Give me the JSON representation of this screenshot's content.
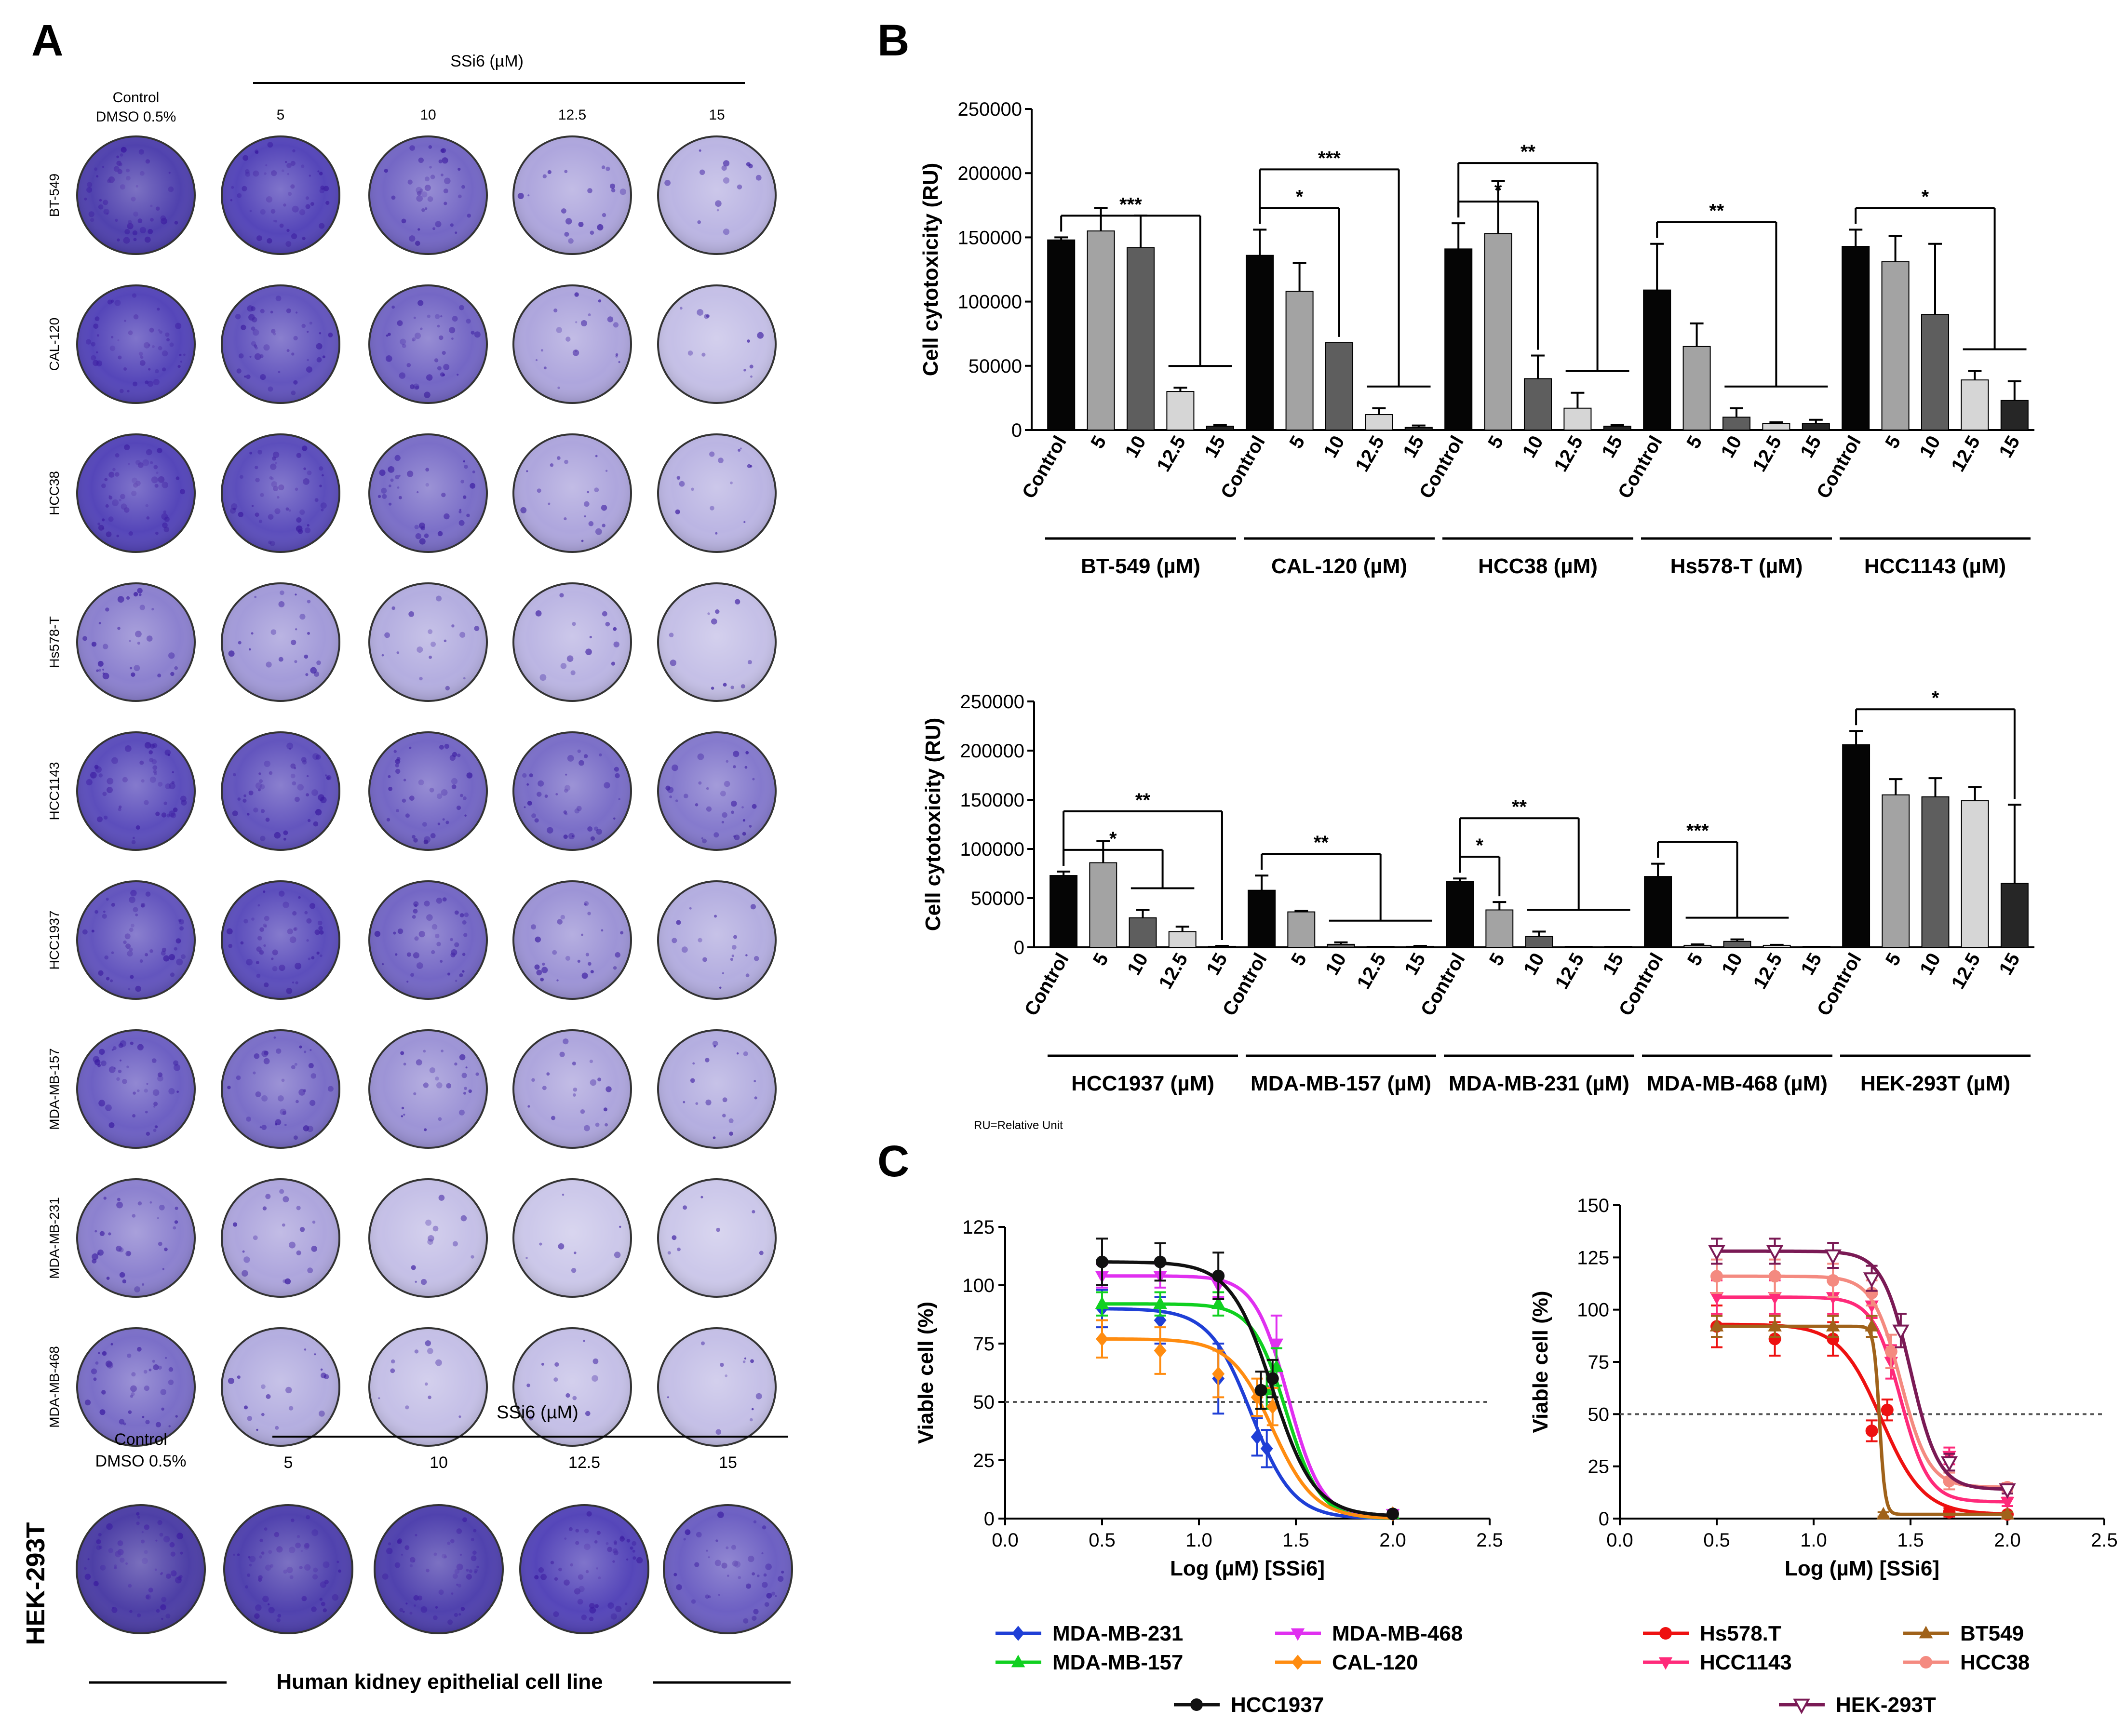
{
  "panel_labels": {
    "A": "A",
    "B": "B",
    "C": "C"
  },
  "colony_assay": {
    "control_label_line1": "Control",
    "control_label_line2": "DMSO 0.5%",
    "treatment_label": "SSi6 (µM)",
    "concentrations": [
      "5",
      "10",
      "12.5",
      "15"
    ],
    "cell_lines": [
      "BT-549",
      "CAL-120",
      "HCC38",
      "Hs578-T",
      "HCC1143",
      "HCC1937",
      "MDA-MB-157",
      "MDA-MB-231",
      "MDA-MB-468"
    ],
    "stain_intensity": [
      [
        0.95,
        0.9,
        0.7,
        0.35,
        0.25
      ],
      [
        0.9,
        0.8,
        0.7,
        0.35,
        0.2
      ],
      [
        0.9,
        0.85,
        0.65,
        0.35,
        0.25
      ],
      [
        0.55,
        0.4,
        0.3,
        0.25,
        0.2
      ],
      [
        0.85,
        0.8,
        0.7,
        0.65,
        0.6
      ],
      [
        0.8,
        0.85,
        0.7,
        0.45,
        0.3
      ],
      [
        0.75,
        0.65,
        0.45,
        0.35,
        0.3
      ],
      [
        0.55,
        0.35,
        0.2,
        0.15,
        0.15
      ],
      [
        0.65,
        0.3,
        0.2,
        0.2,
        0.2
      ]
    ],
    "hek": {
      "control_label_line1": "Control",
      "control_label_line2": "DMSO 0.5%",
      "treatment_label": "SSi6 (µM)",
      "concentrations": [
        "5",
        "10",
        "12.5",
        "15"
      ],
      "cell_line": "HEK-293T",
      "stain_intensity": [
        1.0,
        0.95,
        0.95,
        0.9,
        0.75
      ],
      "caption": "Human kidney epithelial cell line"
    }
  },
  "chart_data": [
    {
      "id": "B-top",
      "type": "bar",
      "ylabel": "Cell cytotoxicity (RU)",
      "ylim": [
        0,
        250000
      ],
      "yticks": [
        "0",
        "50000",
        "100000",
        "150000",
        "200000",
        "250000"
      ],
      "categories": [
        "Control",
        "5",
        "10",
        "12.5",
        "15"
      ],
      "groups": [
        {
          "label": "BT-549 (µM)",
          "values": [
            148000,
            155000,
            142000,
            30000,
            3000
          ],
          "errors": [
            2000,
            18000,
            25000,
            3000,
            1000
          ]
        },
        {
          "label": "CAL-120 (µM)",
          "values": [
            136000,
            108000,
            68000,
            12000,
            2000
          ],
          "errors": [
            20000,
            22000,
            0,
            5000,
            1500
          ]
        },
        {
          "label": "HCC38 (µM)",
          "values": [
            141000,
            153000,
            40000,
            17000,
            3000
          ],
          "errors": [
            20000,
            41000,
            18000,
            12000,
            1000
          ]
        },
        {
          "label": "Hs578-T (µM)",
          "values": [
            109000,
            65000,
            10000,
            5000,
            5000
          ],
          "errors": [
            36000,
            18000,
            7000,
            1000,
            3000
          ]
        },
        {
          "label": "HCC1143 (µM)",
          "values": [
            143000,
            131000,
            90000,
            39000,
            23000
          ],
          "errors": [
            13000,
            20000,
            55000,
            7000,
            15000
          ]
        }
      ],
      "significance": [
        {
          "group": 0,
          "from": 0,
          "targets": [
            3,
            4
          ],
          "label": "***"
        },
        {
          "group": 1,
          "from": 0,
          "targets": [
            2
          ],
          "label": "*"
        },
        {
          "group": 1,
          "from": 0,
          "targets": [
            3,
            4
          ],
          "label": "***"
        },
        {
          "group": 2,
          "from": 0,
          "targets": [
            2
          ],
          "label": "*"
        },
        {
          "group": 2,
          "from": 0,
          "targets": [
            3,
            4
          ],
          "label": "**"
        },
        {
          "group": 3,
          "from": 0,
          "targets": [
            2,
            3,
            4
          ],
          "label": "**"
        },
        {
          "group": 4,
          "from": 0,
          "targets": [
            3,
            4
          ],
          "label": "*"
        }
      ]
    },
    {
      "id": "B-bottom",
      "type": "bar",
      "ylabel": "Cell cytotoxicity (RU)",
      "ylim": [
        0,
        250000
      ],
      "yticks": [
        "0",
        "50000",
        "100000",
        "150000",
        "200000",
        "250000"
      ],
      "categories": [
        "Control",
        "5",
        "10",
        "12.5",
        "15"
      ],
      "groups": [
        {
          "label": "HCC1937 (µM)",
          "values": [
            73000,
            86000,
            30000,
            16000,
            1000
          ],
          "errors": [
            4000,
            22000,
            8000,
            5000,
            500
          ]
        },
        {
          "label": "MDA-MB-157 (µM)",
          "values": [
            58000,
            36000,
            3000,
            0,
            1000
          ],
          "errors": [
            15000,
            1000,
            2000,
            0,
            500
          ]
        },
        {
          "label": "MDA-MB-231 (µM)",
          "values": [
            67000,
            38000,
            11000,
            0,
            0
          ],
          "errors": [
            3000,
            8000,
            5000,
            0,
            0
          ]
        },
        {
          "label": "MDA-MB-468 (µM)",
          "values": [
            72000,
            2000,
            6000,
            2000,
            0
          ],
          "errors": [
            13000,
            1000,
            2000,
            500,
            0
          ]
        },
        {
          "label": "HEK-293T (µM)",
          "values": [
            206000,
            155000,
            153000,
            149000,
            65000
          ],
          "errors": [
            14000,
            16000,
            19000,
            14000,
            80000
          ]
        }
      ],
      "significance": [
        {
          "group": 0,
          "from": 0,
          "targets": [
            2,
            3
          ],
          "label": "*"
        },
        {
          "group": 0,
          "from": 0,
          "targets": [
            4
          ],
          "label": "**"
        },
        {
          "group": 1,
          "from": 0,
          "targets": [
            2,
            3,
            4
          ],
          "label": "**"
        },
        {
          "group": 2,
          "from": 0,
          "targets": [
            1
          ],
          "label": "*"
        },
        {
          "group": 2,
          "from": 0,
          "targets": [
            2,
            3,
            4
          ],
          "label": "**"
        },
        {
          "group": 3,
          "from": 0,
          "targets": [
            1,
            2,
            3
          ],
          "label": "***"
        },
        {
          "group": 4,
          "from": 0,
          "targets": [
            4
          ],
          "label": "*"
        }
      ],
      "footnote": "RU=Relative Unit"
    },
    {
      "id": "C-left",
      "type": "line",
      "xlabel": "Log (µM) [SSi6]",
      "ylabel": "Viable cell (%)",
      "xlim": [
        0,
        2.5
      ],
      "ylim": [
        0,
        125
      ],
      "xticks": [
        "0.0",
        "0.5",
        "1.0",
        "1.5",
        "2.0",
        "2.5"
      ],
      "yticks": [
        "0",
        "25",
        "50",
        "75",
        "100",
        "125"
      ],
      "reference_y": 50,
      "series": [
        {
          "name": "MDA-MB-231",
          "color": "#1f3fd6",
          "marker": "diamond",
          "x": [
            0.5,
            0.8,
            1.1,
            1.3,
            1.35,
            2.0
          ],
          "y": [
            90,
            85,
            60,
            35,
            30,
            2
          ],
          "err": [
            8,
            10,
            15,
            8,
            8,
            1
          ],
          "fit": {
            "top": 90,
            "bottom": 0,
            "ec50": 1.27,
            "hill": 4
          }
        },
        {
          "name": "MDA-MB-468",
          "color": "#e030f0",
          "marker": "triangle-down",
          "x": [
            0.5,
            0.8,
            1.1,
            1.35,
            1.4,
            2.0
          ],
          "y": [
            104,
            104,
            100,
            55,
            75,
            2
          ],
          "err": [
            5,
            5,
            5,
            8,
            12,
            1
          ],
          "fit": {
            "top": 104,
            "bottom": 0,
            "ec50": 1.46,
            "hill": 5
          }
        },
        {
          "name": "MDA-MB-157",
          "color": "#10d020",
          "marker": "triangle-up",
          "x": [
            0.5,
            0.8,
            1.1,
            1.35,
            1.4,
            2.0
          ],
          "y": [
            92,
            92,
            92,
            55,
            65,
            2
          ],
          "err": [
            5,
            5,
            5,
            8,
            8,
            1
          ],
          "fit": {
            "top": 92,
            "bottom": 0,
            "ec50": 1.45,
            "hill": 5
          }
        },
        {
          "name": "CAL-120",
          "color": "#ff8c10",
          "marker": "diamond",
          "x": [
            0.5,
            0.8,
            1.1,
            1.3,
            1.38,
            2.0
          ],
          "y": [
            77,
            72,
            62,
            52,
            48,
            2
          ],
          "err": [
            8,
            10,
            10,
            8,
            8,
            1
          ],
          "fit": {
            "top": 77,
            "bottom": 0,
            "ec50": 1.38,
            "hill": 4
          }
        },
        {
          "name": "HCC1937",
          "color": "#111111",
          "marker": "circle",
          "x": [
            0.5,
            0.8,
            1.1,
            1.32,
            1.38,
            2.0
          ],
          "y": [
            110,
            110,
            104,
            55,
            60,
            2
          ],
          "err": [
            10,
            8,
            10,
            8,
            8,
            1
          ],
          "fit": {
            "top": 110,
            "bottom": 1,
            "ec50": 1.38,
            "hill": 4
          }
        }
      ]
    },
    {
      "id": "C-right",
      "type": "line",
      "xlabel": "Log (µM) [SSi6]",
      "ylabel": "Viable cell (%)",
      "xlim": [
        0,
        2.5
      ],
      "ylim": [
        0,
        150
      ],
      "xticks": [
        "0.0",
        "0.5",
        "1.0",
        "1.5",
        "2.0",
        "2.5"
      ],
      "yticks": [
        "0",
        "25",
        "50",
        "75",
        "100",
        "125",
        "150"
      ],
      "reference_y": 50,
      "series": [
        {
          "name": "Hs578.T",
          "color": "#ee1111",
          "marker": "circle",
          "x": [
            0.5,
            0.8,
            1.1,
            1.3,
            1.38,
            1.7,
            2.0
          ],
          "y": [
            92,
            86,
            86,
            42,
            52,
            3,
            2
          ],
          "err": [
            10,
            8,
            8,
            5,
            5,
            2,
            1
          ],
          "fit": {
            "top": 93,
            "bottom": 2,
            "ec50": 1.35,
            "hill": 4
          }
        },
        {
          "name": "HCC1143",
          "color": "#ff2a7a",
          "marker": "triangle-down",
          "x": [
            0.5,
            0.8,
            1.1,
            1.3,
            1.4,
            1.7,
            2.0
          ],
          "y": [
            106,
            106,
            106,
            102,
            75,
            30,
            8
          ],
          "err": [
            8,
            8,
            8,
            6,
            8,
            4,
            2
          ],
          "fit": {
            "top": 106,
            "bottom": 8,
            "ec50": 1.45,
            "hill": 6
          }
        },
        {
          "name": "BT549",
          "color": "#a0621a",
          "marker": "triangle-up",
          "x": [
            0.5,
            0.8,
            1.1,
            1.3,
            1.36,
            2.0
          ],
          "y": [
            92,
            92,
            92,
            92,
            2,
            2
          ],
          "err": [
            5,
            5,
            5,
            5,
            1,
            1
          ],
          "fit": {
            "top": 92,
            "bottom": 2,
            "ec50": 1.34,
            "hill": 30
          }
        },
        {
          "name": "HCC38",
          "color": "#f48a80",
          "marker": "circle",
          "x": [
            0.5,
            0.8,
            1.1,
            1.3,
            1.4,
            1.7,
            2.0
          ],
          "y": [
            116,
            116,
            114,
            108,
            80,
            18,
            15
          ],
          "err": [
            8,
            8,
            8,
            6,
            8,
            4,
            2
          ],
          "fit": {
            "top": 116,
            "bottom": 15,
            "ec50": 1.45,
            "hill": 6
          }
        },
        {
          "name": "HEK-293T",
          "color": "#7a1a55",
          "marker": "triangle-down-open",
          "x": [
            0.5,
            0.8,
            1.1,
            1.3,
            1.45,
            1.7,
            2.0
          ],
          "y": [
            128,
            128,
            126,
            115,
            90,
            27,
            14
          ],
          "err": [
            6,
            6,
            6,
            6,
            8,
            4,
            2
          ],
          "fit": {
            "top": 128,
            "bottom": 14,
            "ec50": 1.5,
            "hill": 6
          }
        }
      ]
    }
  ],
  "colors": {
    "bar_fills": [
      "#050505",
      "#a3a3a3",
      "#5e5e5e",
      "#d6d6d6",
      "#262626"
    ]
  }
}
